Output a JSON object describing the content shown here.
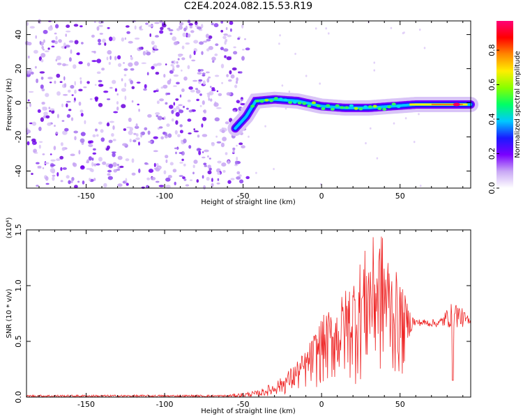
{
  "title": "C2E4.2024.082.15.53.R19",
  "colors": {
    "axis": "#000000",
    "snr_line": "#ee2222"
  },
  "chart_data": [
    {
      "type": "heatmap",
      "xlabel": "Height of straight line (km)",
      "ylabel": "Frequency (Hz)",
      "xlim": [
        -188,
        95
      ],
      "ylim": [
        -50,
        48
      ],
      "x_ticks": [
        -150,
        -100,
        -50,
        0,
        50
      ],
      "y_ticks": [
        -40,
        -20,
        0,
        20,
        40
      ],
      "colorbar": {
        "label": "Normalized spectral amplitude",
        "ticks": [
          "0.0",
          "0.2",
          "0.4",
          "0.6",
          "0.8"
        ],
        "range": [
          0,
          0.97
        ],
        "colormap": [
          "#ffffff",
          "#c9a8f5",
          "#7a00ff",
          "#1a1aff",
          "#00c8ff",
          "#00ff66",
          "#88ff00",
          "#ffee00",
          "#ff8800",
          "#ff0000",
          "#ff0077"
        ]
      },
      "noise_region_x": [
        -188,
        -47
      ],
      "signal_track": [
        {
          "x": -55,
          "f": -15
        },
        {
          "x": -48,
          "f": -8
        },
        {
          "x": -42,
          "f": 1
        },
        {
          "x": -30,
          "f": 2
        },
        {
          "x": -15,
          "f": 1
        },
        {
          "x": 0,
          "f": -2
        },
        {
          "x": 15,
          "f": -3
        },
        {
          "x": 30,
          "f": -3
        },
        {
          "x": 45,
          "f": -2
        },
        {
          "x": 60,
          "f": -1
        },
        {
          "x": 75,
          "f": -1
        },
        {
          "x": 95,
          "f": -1
        }
      ],
      "peak": {
        "x": 86,
        "f": -1,
        "amplitude": 0.97
      }
    },
    {
      "type": "line",
      "xlabel": "Height of straight line (km)",
      "ylabel": "SNR (10 * v/v)",
      "multiplier": "(x10⁴)",
      "xlim": [
        -188,
        95
      ],
      "ylim": [
        0,
        1.5
      ],
      "x_ticks": [
        -150,
        -100,
        -50,
        0,
        50
      ],
      "y_ticks": [
        "0.0",
        "0.5",
        "1.0",
        "1.5"
      ],
      "series": [
        {
          "color": "#ee2222",
          "envelope": [
            {
              "x": -188,
              "y": 0.02
            },
            {
              "x": -60,
              "y": 0.02
            },
            {
              "x": -40,
              "y": 0.06
            },
            {
              "x": -25,
              "y": 0.18
            },
            {
              "x": -10,
              "y": 0.42
            },
            {
              "x": 0,
              "y": 0.72
            },
            {
              "x": 10,
              "y": 0.85
            },
            {
              "x": 20,
              "y": 1.1
            },
            {
              "x": 30,
              "y": 1.4
            },
            {
              "x": 38,
              "y": 1.5
            },
            {
              "x": 45,
              "y": 1.2
            },
            {
              "x": 50,
              "y": 1.05
            },
            {
              "x": 56,
              "y": 0.8
            },
            {
              "x": 60,
              "y": 0.7
            },
            {
              "x": 75,
              "y": 0.7
            },
            {
              "x": 80,
              "y": 0.8
            },
            {
              "x": 85,
              "y": 0.88
            },
            {
              "x": 95,
              "y": 0.7
            }
          ],
          "floor": [
            {
              "x": -188,
              "y": 0.0
            },
            {
              "x": -50,
              "y": 0.0
            },
            {
              "x": -20,
              "y": 0.02
            },
            {
              "x": 0,
              "y": 0.08
            },
            {
              "x": 30,
              "y": 0.1
            },
            {
              "x": 52,
              "y": 0.15
            },
            {
              "x": 56,
              "y": 0.55
            },
            {
              "x": 60,
              "y": 0.64
            },
            {
              "x": 80,
              "y": 0.62
            },
            {
              "x": 95,
              "y": 0.63
            }
          ],
          "dip": {
            "x": 83.5,
            "y": 0.15
          }
        }
      ]
    }
  ]
}
